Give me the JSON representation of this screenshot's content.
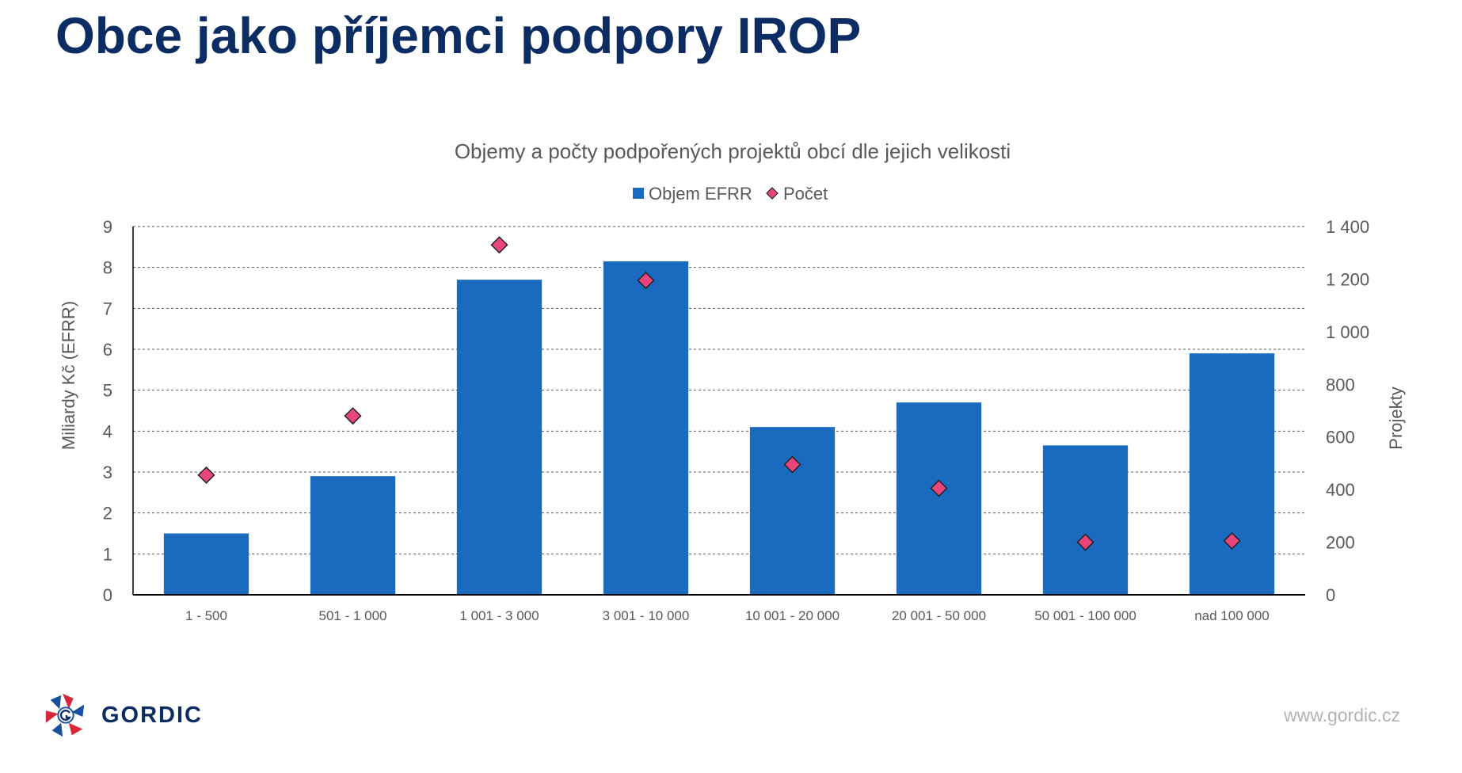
{
  "slide": {
    "title": "Obce jako příjemci podpory IROP",
    "logo_text": "GORDIC",
    "website": "www.gordic.cz"
  },
  "colors": {
    "title": "#0c2d63",
    "bar": "#1a6bbf",
    "marker": "#e8457a",
    "marker_stroke": "#222222",
    "grid": "#555555",
    "axis_text": "#595959"
  },
  "chart_data": {
    "type": "bar",
    "title": "Objemy a počty podpořených projektů obcí dle jejich velikosti",
    "categories": [
      "1 - 500",
      "501 - 1 000",
      "1 001 - 3 000",
      "3 001 - 10 000",
      "10 001 - 20 000",
      "20 001 - 50 000",
      "50 001 - 100 000",
      "nad 100 000"
    ],
    "series": [
      {
        "name": "Objem EFRR",
        "type": "bar",
        "axis": "left",
        "values": [
          1.5,
          2.9,
          7.7,
          8.15,
          4.1,
          4.7,
          3.65,
          5.9
        ]
      },
      {
        "name": "Počet",
        "type": "scatter",
        "marker": "diamond",
        "axis": "right",
        "values": [
          455,
          680,
          1330,
          1195,
          495,
          405,
          200,
          205
        ]
      }
    ],
    "ylabel": "Miliardy Kč (EFRR)",
    "y2label": "Projekty",
    "ylim": [
      0,
      9
    ],
    "y2lim": [
      0,
      1400
    ],
    "yticks": [
      "0",
      "1",
      "2",
      "3",
      "4",
      "5",
      "6",
      "7",
      "8",
      "9"
    ],
    "y2ticks": [
      "0",
      "200",
      "400",
      "600",
      "800",
      "1 000",
      "1 200",
      "1 400"
    ],
    "grid": true,
    "legend_position": "top-center"
  }
}
